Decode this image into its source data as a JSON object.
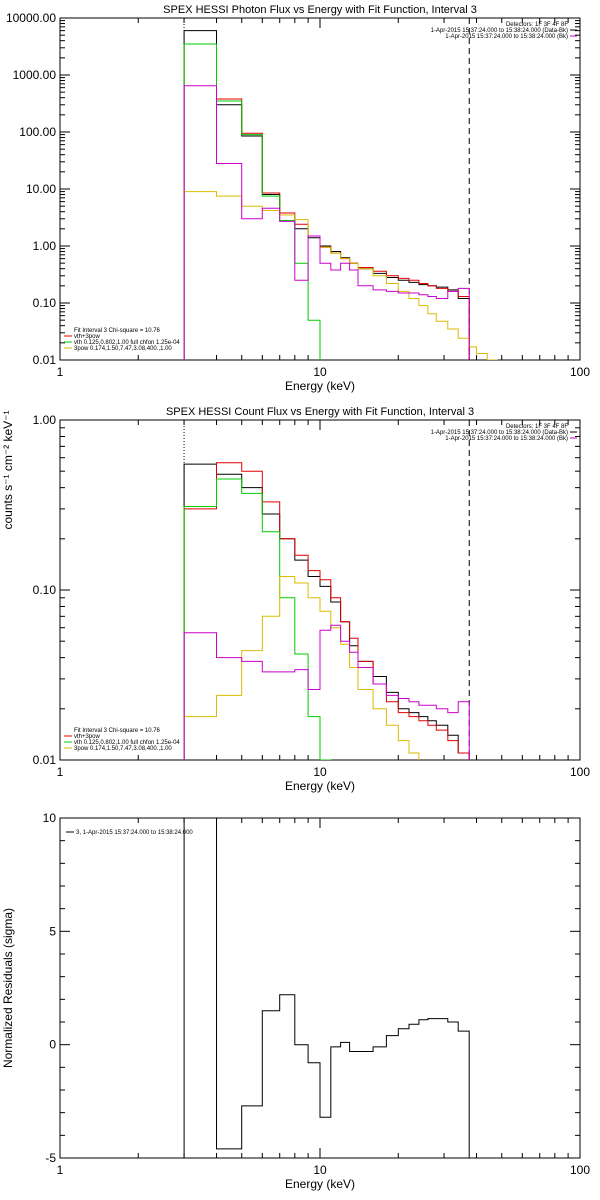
{
  "chart_data": [
    {
      "type": "line",
      "title": "SPEX HESSI Photon Flux vs Energy with Fit Function, Interval 3",
      "xlabel": "Energy (keV)",
      "ylabel": "",
      "xscale": "log",
      "yscale": "log",
      "xlim": [
        1,
        100
      ],
      "ylim": [
        0.01,
        10000
      ],
      "xticks": [
        "1",
        "10",
        "100"
      ],
      "yticks": [
        "0.01",
        "0.10",
        "1.00",
        "10.00",
        "100.00",
        "1000.00",
        "10000.00"
      ],
      "legend_top": [
        {
          "text": "Detectors: 1F 3F 4F 8F",
          "color": "#000000"
        },
        {
          "text": "1-Apr-2015 15:37:24.000 to 15:38:24.000 (Data-Bk)",
          "color": "#000000"
        },
        {
          "text": "1-Apr-2015 15:37:24.000 to 15:38:24.000 (Bk)",
          "color": "#cc00cc"
        }
      ],
      "legend_bottom": [
        {
          "text": "Fit Interval 3   Chi-square = 10.76",
          "color": "#000000"
        },
        {
          "text": "vth+3pow",
          "color": "#e00000"
        },
        {
          "text": "vth 0.125,0.802,1.00  full chfon 1.25e-04",
          "color": "#00cc00"
        },
        {
          "text": "3pow 0.174,1.50,7.47,3.08,400.,1.00",
          "color": "#ddbb00"
        }
      ],
      "fit_range_keV": [
        3.0,
        37.5
      ],
      "energy_edges": [
        3.0,
        4.0,
        5.0,
        6.0,
        7.0,
        8.0,
        9.0,
        10.0,
        11.0,
        12.0,
        13.0,
        14.0,
        16.0,
        18.0,
        20.0,
        22.0,
        24.0,
        26.0,
        28.0,
        31.0,
        34.0,
        37.5,
        40.0,
        44.0,
        48.0
      ],
      "series": [
        {
          "name": "Data-Bk",
          "color": "#000000",
          "values": [
            6000,
            300,
            85,
            8,
            3.5,
            2.0,
            1.4,
            1.0,
            0.8,
            0.62,
            0.5,
            0.4,
            0.33,
            0.28,
            0.25,
            0.23,
            0.21,
            0.2,
            0.19,
            0.17,
            0.12
          ]
        },
        {
          "name": "vth+3pow",
          "color": "#e00000",
          "values": [
            3500,
            380,
            95,
            8.5,
            3.8,
            2.4,
            1.5,
            0.95,
            0.75,
            0.6,
            0.5,
            0.42,
            0.36,
            0.3,
            0.27,
            0.25,
            0.22,
            0.2,
            0.18,
            0.16,
            0.13
          ]
        },
        {
          "name": "vth",
          "color": "#00cc00",
          "values": [
            3500,
            350,
            90,
            7.5,
            2.8,
            0.5,
            0.05,
            0.009
          ]
        },
        {
          "name": "3pow",
          "color": "#ddbb00",
          "values": [
            9.0,
            7.5,
            5.0,
            4.2,
            3.5,
            2.9,
            1.5,
            0.95,
            0.75,
            0.6,
            0.5,
            0.4,
            0.3,
            0.22,
            0.16,
            0.12,
            0.09,
            0.065,
            0.048,
            0.035,
            0.024,
            0.017,
            0.013,
            0.01
          ]
        },
        {
          "name": "Bk",
          "color": "#cc00cc",
          "values": [
            650,
            28,
            3.0,
            4.6,
            2.7,
            0.25,
            1.5,
            0.5,
            0.38,
            0.5,
            0.38,
            0.2,
            0.17,
            0.16,
            0.15,
            0.15,
            0.14,
            0.13,
            0.12,
            0.16,
            0.18
          ]
        }
      ]
    },
    {
      "type": "line",
      "title": "SPEX HESSI Count Flux vs Energy with Fit Function, Interval 3",
      "xlabel": "Energy (keV)",
      "ylabel": "counts s⁻¹ cm⁻² keV⁻¹",
      "xscale": "log",
      "yscale": "log",
      "xlim": [
        1,
        100
      ],
      "ylim": [
        0.01,
        1.0
      ],
      "xticks": [
        "1",
        "10",
        "100"
      ],
      "yticks": [
        "0.01",
        "0.10",
        "1.00"
      ],
      "legend_top": [
        {
          "text": "Detectors: 1F 3F 4F 8F",
          "color": "#000000"
        },
        {
          "text": "1-Apr-2015 15:37:24.000 to 15:38:24.000 (Data-Bk)",
          "color": "#000000"
        },
        {
          "text": "1-Apr-2015 15:37:24.000 to 15:38:24.000 (Bk)",
          "color": "#cc00cc"
        }
      ],
      "legend_bottom": [
        {
          "text": "Fit Interval 3   Chi-square = 10.76",
          "color": "#000000"
        },
        {
          "text": "vth+3pow",
          "color": "#e00000"
        },
        {
          "text": "vth 0.125,0.802,1.00  full chfon 1.25e-04",
          "color": "#00cc00"
        },
        {
          "text": "3pow 0.174,1.50,7.47,3.08,400.,1.00",
          "color": "#ddbb00"
        }
      ],
      "fit_range_keV": [
        3.0,
        37.5
      ],
      "energy_edges": [
        3.0,
        4.0,
        5.0,
        6.0,
        7.0,
        8.0,
        9.0,
        10.0,
        11.0,
        12.0,
        13.0,
        14.0,
        16.0,
        18.0,
        20.0,
        22.0,
        24.0,
        26.0,
        28.0,
        31.0,
        34.0,
        37.5,
        40.0,
        44.0,
        48.0
      ],
      "series": [
        {
          "name": "Data-Bk",
          "color": "#000000",
          "values": [
            0.55,
            0.48,
            0.4,
            0.28,
            0.2,
            0.15,
            0.12,
            0.105,
            0.085,
            0.065,
            0.047,
            0.038,
            0.031,
            0.025,
            0.02,
            0.019,
            0.018,
            0.017,
            0.016,
            0.014,
            0.011
          ]
        },
        {
          "name": "vth+3pow",
          "color": "#e00000",
          "values": [
            0.3,
            0.56,
            0.5,
            0.33,
            0.2,
            0.16,
            0.13,
            0.115,
            0.09,
            0.065,
            0.052,
            0.038,
            0.028,
            0.022,
            0.019,
            0.018,
            0.017,
            0.016,
            0.015,
            0.013,
            0.011
          ]
        },
        {
          "name": "vth",
          "color": "#00cc00",
          "values": [
            0.31,
            0.45,
            0.37,
            0.22,
            0.09,
            0.042,
            0.018,
            0.01
          ]
        },
        {
          "name": "3pow",
          "color": "#ddbb00",
          "values": [
            0.018,
            0.024,
            0.044,
            0.07,
            0.12,
            0.11,
            0.09,
            0.075,
            0.06,
            0.048,
            0.035,
            0.026,
            0.02,
            0.016,
            0.013,
            0.011,
            0.009
          ]
        },
        {
          "name": "Bk",
          "color": "#cc00cc",
          "values": [
            0.056,
            0.04,
            0.038,
            0.033,
            0.033,
            0.034,
            0.026,
            0.058,
            0.062,
            0.05,
            0.043,
            0.035,
            0.028,
            0.024,
            0.023,
            0.022,
            0.021,
            0.021,
            0.02,
            0.019,
            0.022
          ]
        }
      ]
    },
    {
      "type": "line",
      "title": "",
      "xlabel": "Energy (keV)",
      "ylabel": "Normalized Residuals (sigma)",
      "xscale": "log",
      "yscale": "linear",
      "xlim": [
        1,
        100
      ],
      "ylim": [
        -5,
        10
      ],
      "xticks": [
        "1",
        "10",
        "100"
      ],
      "yticks": [
        "-5",
        "0",
        "5",
        "10"
      ],
      "legend": {
        "text": "3,  1-Apr-2015 15:37:24.000 to 15:38:24.000",
        "color": "#000000"
      },
      "energy_edges": [
        3.0,
        4.0,
        5.0,
        6.0,
        7.0,
        8.0,
        9.0,
        10.0,
        11.0,
        12.0,
        13.0,
        14.0,
        16.0,
        18.0,
        20.0,
        22.0,
        24.0,
        26.0,
        28.0,
        31.0,
        34.0,
        37.5
      ],
      "series": [
        {
          "name": "3,  1-Apr-2015 15:37:24.000 to 15:38:24.000",
          "color": "#000000",
          "values": [
            10.2,
            -4.6,
            -2.7,
            1.5,
            2.2,
            0.0,
            -0.8,
            -3.2,
            -0.1,
            0.1,
            -0.3,
            -0.3,
            -0.1,
            0.4,
            0.7,
            0.9,
            1.1,
            1.15,
            1.15,
            1.0,
            0.6
          ]
        }
      ]
    }
  ]
}
